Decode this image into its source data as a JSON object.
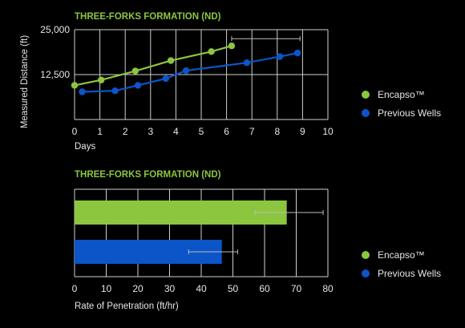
{
  "colors": {
    "background": "#000000",
    "encapso": "#8cc63f",
    "previous": "#0b55c9",
    "grid": "#cfcfcf",
    "title": "#8cc63f",
    "text": "#e6e6e6",
    "error_bar": "#bbbbbb"
  },
  "chart_data": [
    {
      "type": "line",
      "title": "THREE-FORKS FORMATION (ND)",
      "xlabel": "Days",
      "ylabel": "Measured Distance (ft)",
      "xlim": [
        0,
        10
      ],
      "ylim": [
        0,
        25000
      ],
      "x_ticks": [
        "0",
        "1",
        "2",
        "3",
        "4",
        "5",
        "6",
        "7",
        "8",
        "9",
        "10"
      ],
      "y_ticks": [
        "12,500",
        "25,000"
      ],
      "y_tick_values": [
        12500,
        25000
      ],
      "grid": true,
      "legend_position": "right",
      "series": [
        {
          "name": "Encapso™",
          "color": "#8cc63f",
          "points": [
            {
              "x": 0.0,
              "y": 9500
            },
            {
              "x": 1.05,
              "y": 11000
            },
            {
              "x": 2.4,
              "y": 13500
            },
            {
              "x": 3.8,
              "y": 16400
            },
            {
              "x": 5.4,
              "y": 18900
            },
            {
              "x": 6.2,
              "y": 20500
            }
          ]
        },
        {
          "name": "Previous Wells",
          "color": "#0b55c9",
          "points": [
            {
              "x": 0.3,
              "y": 7700
            },
            {
              "x": 1.6,
              "y": 8000
            },
            {
              "x": 2.5,
              "y": 9500
            },
            {
              "x": 3.6,
              "y": 11400
            },
            {
              "x": 4.4,
              "y": 13600
            },
            {
              "x": 6.8,
              "y": 15800
            },
            {
              "x": 8.1,
              "y": 17500
            },
            {
              "x": 8.8,
              "y": 18500
            }
          ]
        }
      ],
      "error_bar": {
        "series": "Encapso™",
        "y": 22500,
        "x_low": 6.2,
        "x_high": 8.9
      }
    },
    {
      "type": "bar",
      "orientation": "horizontal",
      "title": "THREE-FORKS FORMATION (ND)",
      "xlabel": "Rate of Penetration (ft/hr)",
      "xlim": [
        0,
        80
      ],
      "x_ticks": [
        "0",
        "10",
        "20",
        "30",
        "40",
        "50",
        "60",
        "70",
        "80"
      ],
      "grid": true,
      "legend_position": "right",
      "series": [
        {
          "name": "Encapso™",
          "color": "#8cc63f",
          "value": 67,
          "error": [
            57,
            78.5
          ]
        },
        {
          "name": "Previous Wells",
          "color": "#0b55c9",
          "value": 46.5,
          "error": [
            36,
            51.5
          ]
        }
      ]
    }
  ]
}
